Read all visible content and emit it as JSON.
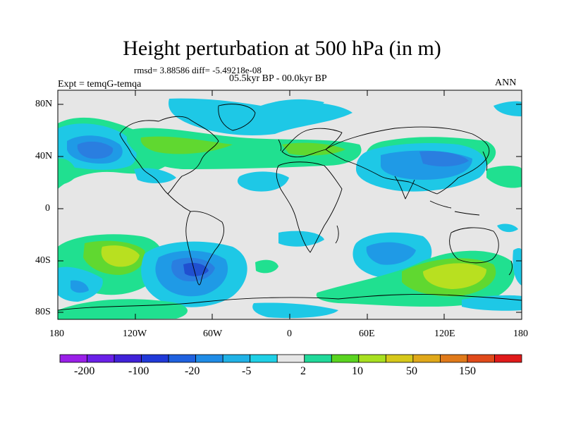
{
  "title": "Height perturbation at 500 hPa (in m)",
  "stats_line": "rmsd= 3.88586 diff= -5.49218e-08",
  "expt_label": "Expt = temqG-temqa",
  "period_label": "05.5kyr BP - 00.0kyr BP",
  "season_label": "ANN",
  "lat_ticks": [
    "80N",
    "40N",
    "0",
    "40S",
    "80S"
  ],
  "lon_ticks": [
    "180",
    "120W",
    "60W",
    "0",
    "60E",
    "120E",
    "180"
  ],
  "colorbar": {
    "colors": [
      "#9a1fe8",
      "#6a20e8",
      "#4021d8",
      "#2039d8",
      "#1f61df",
      "#1f8ce6",
      "#20b2e6",
      "#1fd0e6",
      "#e6e6e6",
      "#20d99a",
      "#5ad420",
      "#a8e020",
      "#d6c81a",
      "#e0a81a",
      "#e07a1a",
      "#e04a1a",
      "#e01a1a"
    ],
    "labels": [
      "-200",
      "-100",
      "-20",
      "-5",
      "2",
      "10",
      "50",
      "150"
    ]
  },
  "palette": {
    "bg": "#e6e6e6",
    "lightblue": "#1ec8e6",
    "midblue": "#1f9ae6",
    "blue": "#1f6fdf",
    "darkblue": "#2050d0",
    "lightgreen": "#20e090",
    "green": "#60d830",
    "yellowgreen": "#b8e020"
  }
}
